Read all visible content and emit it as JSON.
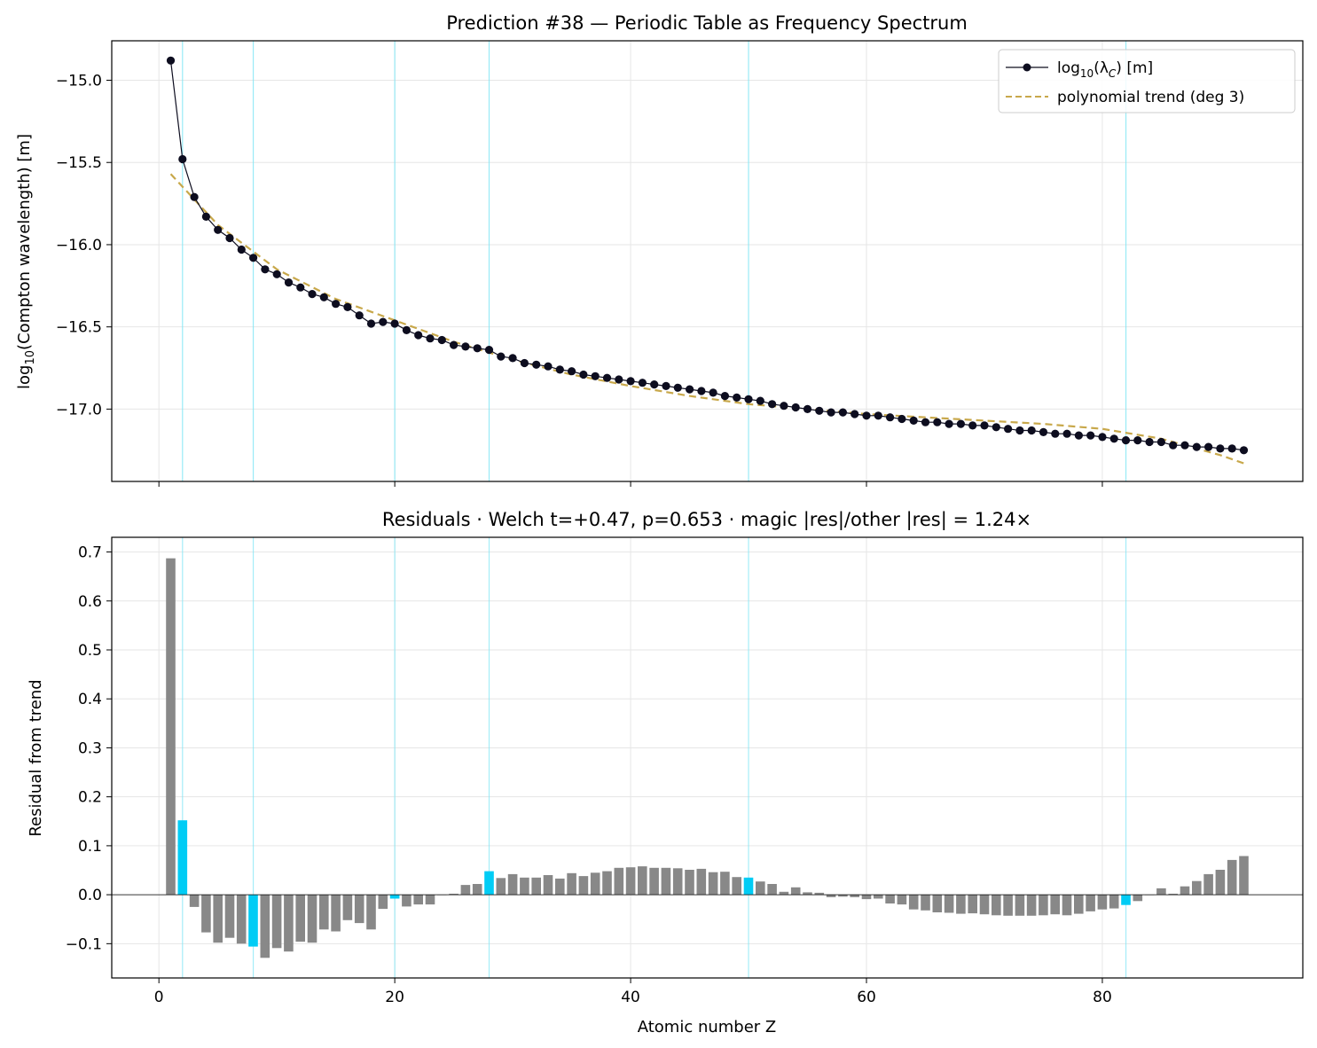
{
  "colors": {
    "series": "#0d0d1f",
    "trend": "#c8a84b",
    "magic_bar": "#00ccf5",
    "other_bar": "#888888",
    "magic_line": "#7fe6f5",
    "grid": "#e6e6e6"
  },
  "chart_data": [
    {
      "type": "line",
      "title": "Prediction #38 — Periodic Table as Frequency Spectrum",
      "ylabel_main": "log",
      "ylabel_sub": "10",
      "ylabel_rest": "(Compton wavelength) [m]",
      "xlim": [
        -4,
        97
      ],
      "ylim": [
        -17.44,
        -14.76
      ],
      "x_ticks": [
        0,
        20,
        40,
        60,
        80
      ],
      "y_ticks": [
        -15.0,
        -15.5,
        -16.0,
        -16.5,
        -17.0
      ],
      "y_tick_labels": [
        "−15.0",
        "−15.5",
        "−16.0",
        "−16.5",
        "−17.0"
      ],
      "grid": true,
      "legend_position": "top-right",
      "legend": {
        "series_main": "log",
        "series_sub": "10",
        "series_mid": "(λ",
        "series_sub2": "C",
        "series_end": ") [m]",
        "trend": "polynomial trend (deg 3)"
      },
      "magic_numbers": [
        2,
        8,
        20,
        28,
        50,
        82
      ],
      "series": [
        {
          "name": "log10(λC) [m]",
          "x": [
            1,
            2,
            3,
            4,
            5,
            6,
            7,
            8,
            9,
            10,
            11,
            12,
            13,
            14,
            15,
            16,
            17,
            18,
            19,
            20,
            21,
            22,
            23,
            24,
            25,
            26,
            27,
            28,
            29,
            30,
            31,
            32,
            33,
            34,
            35,
            36,
            37,
            38,
            39,
            40,
            41,
            42,
            43,
            44,
            45,
            46,
            47,
            48,
            49,
            50,
            51,
            52,
            53,
            54,
            55,
            56,
            57,
            58,
            59,
            60,
            61,
            62,
            63,
            64,
            65,
            66,
            67,
            68,
            69,
            70,
            71,
            72,
            73,
            74,
            75,
            76,
            77,
            78,
            79,
            80,
            81,
            82,
            83,
            84,
            85,
            86,
            87,
            88,
            89,
            90,
            91,
            92
          ],
          "y": [
            -14.88,
            -15.48,
            -15.71,
            -15.83,
            -15.91,
            -15.96,
            -16.03,
            -16.08,
            -16.15,
            -16.18,
            -16.23,
            -16.26,
            -16.3,
            -16.32,
            -16.36,
            -16.38,
            -16.43,
            -16.48,
            -16.47,
            -16.48,
            -16.52,
            -16.55,
            -16.57,
            -16.58,
            -16.61,
            -16.62,
            -16.63,
            -16.64,
            -16.68,
            -16.69,
            -16.72,
            -16.73,
            -16.74,
            -16.76,
            -16.77,
            -16.79,
            -16.8,
            -16.81,
            -16.82,
            -16.83,
            -16.84,
            -16.85,
            -16.86,
            -16.87,
            -16.88,
            -16.89,
            -16.9,
            -16.92,
            -16.93,
            -16.94,
            -16.95,
            -16.97,
            -16.98,
            -16.99,
            -17.0,
            -17.01,
            -17.02,
            -17.02,
            -17.03,
            -17.04,
            -17.04,
            -17.05,
            -17.06,
            -17.07,
            -17.08,
            -17.08,
            -17.09,
            -17.09,
            -17.1,
            -17.1,
            -17.11,
            -17.12,
            -17.13,
            -17.13,
            -17.14,
            -17.15,
            -17.15,
            -17.16,
            -17.16,
            -17.17,
            -17.18,
            -17.19,
            -17.19,
            -17.2,
            -17.2,
            -17.22,
            -17.22,
            -17.23,
            -17.23,
            -17.24,
            -17.24,
            -17.25
          ]
        },
        {
          "name": "polynomial trend (deg 3)",
          "x": [
            1,
            5,
            10,
            15,
            20,
            25,
            30,
            35,
            40,
            45,
            50,
            55,
            60,
            65,
            70,
            75,
            80,
            85,
            90,
            92
          ],
          "y": [
            -15.57,
            -15.88,
            -16.15,
            -16.33,
            -16.46,
            -16.59,
            -16.7,
            -16.79,
            -16.86,
            -16.92,
            -16.97,
            -17.0,
            -17.03,
            -17.05,
            -17.07,
            -17.09,
            -17.12,
            -17.18,
            -17.28,
            -17.33
          ]
        }
      ]
    },
    {
      "type": "bar",
      "title": "Residuals · Welch t=+0.47, p=0.653 · magic |res|/other |res| = 1.24×",
      "xlabel": "Atomic number Z",
      "ylabel": "Residual from trend",
      "xlim": [
        -4,
        97
      ],
      "ylim": [
        -0.17,
        0.73
      ],
      "x_ticks": [
        0,
        20,
        40,
        60,
        80
      ],
      "x_tick_labels": [
        "0",
        "20",
        "40",
        "60",
        "80"
      ],
      "y_ticks": [
        0.7,
        0.6,
        0.5,
        0.4,
        0.3,
        0.2,
        0.1,
        0.0,
        -0.1
      ],
      "y_tick_labels": [
        "0.7",
        "0.6",
        "0.5",
        "0.4",
        "0.3",
        "0.2",
        "0.1",
        "0.0",
        "−0.1"
      ],
      "grid": true,
      "magic_numbers": [
        2,
        8,
        20,
        28,
        50,
        82
      ],
      "x": [
        1,
        2,
        3,
        4,
        5,
        6,
        7,
        8,
        9,
        10,
        11,
        12,
        13,
        14,
        15,
        16,
        17,
        18,
        19,
        20,
        21,
        22,
        23,
        24,
        25,
        26,
        27,
        28,
        29,
        30,
        31,
        32,
        33,
        34,
        35,
        36,
        37,
        38,
        39,
        40,
        41,
        42,
        43,
        44,
        45,
        46,
        47,
        48,
        49,
        50,
        51,
        52,
        53,
        54,
        55,
        56,
        57,
        58,
        59,
        60,
        61,
        62,
        63,
        64,
        65,
        66,
        67,
        68,
        69,
        70,
        71,
        72,
        73,
        74,
        75,
        76,
        77,
        78,
        79,
        80,
        81,
        82,
        83,
        84,
        85,
        86,
        87,
        88,
        89,
        90,
        91,
        92
      ],
      "values": [
        0.687,
        0.152,
        -0.025,
        -0.077,
        -0.098,
        -0.088,
        -0.1,
        -0.106,
        -0.129,
        -0.109,
        -0.116,
        -0.096,
        -0.098,
        -0.071,
        -0.075,
        -0.052,
        -0.058,
        -0.071,
        -0.029,
        -0.008,
        -0.024,
        -0.02,
        -0.02,
        0.0,
        0.002,
        0.02,
        0.022,
        0.048,
        0.034,
        0.042,
        0.035,
        0.035,
        0.04,
        0.033,
        0.044,
        0.038,
        0.045,
        0.048,
        0.055,
        0.056,
        0.058,
        0.055,
        0.055,
        0.054,
        0.051,
        0.053,
        0.046,
        0.047,
        0.036,
        0.035,
        0.027,
        0.022,
        0.006,
        0.015,
        0.005,
        0.004,
        -0.005,
        -0.004,
        -0.005,
        -0.009,
        -0.008,
        -0.018,
        -0.02,
        -0.03,
        -0.032,
        -0.036,
        -0.037,
        -0.039,
        -0.038,
        -0.04,
        -0.042,
        -0.043,
        -0.043,
        -0.043,
        -0.042,
        -0.04,
        -0.042,
        -0.039,
        -0.034,
        -0.03,
        -0.028,
        -0.021,
        -0.013,
        0.0,
        0.013,
        0.002,
        0.017,
        0.028,
        0.042,
        0.051,
        0.071,
        0.079
      ]
    }
  ]
}
